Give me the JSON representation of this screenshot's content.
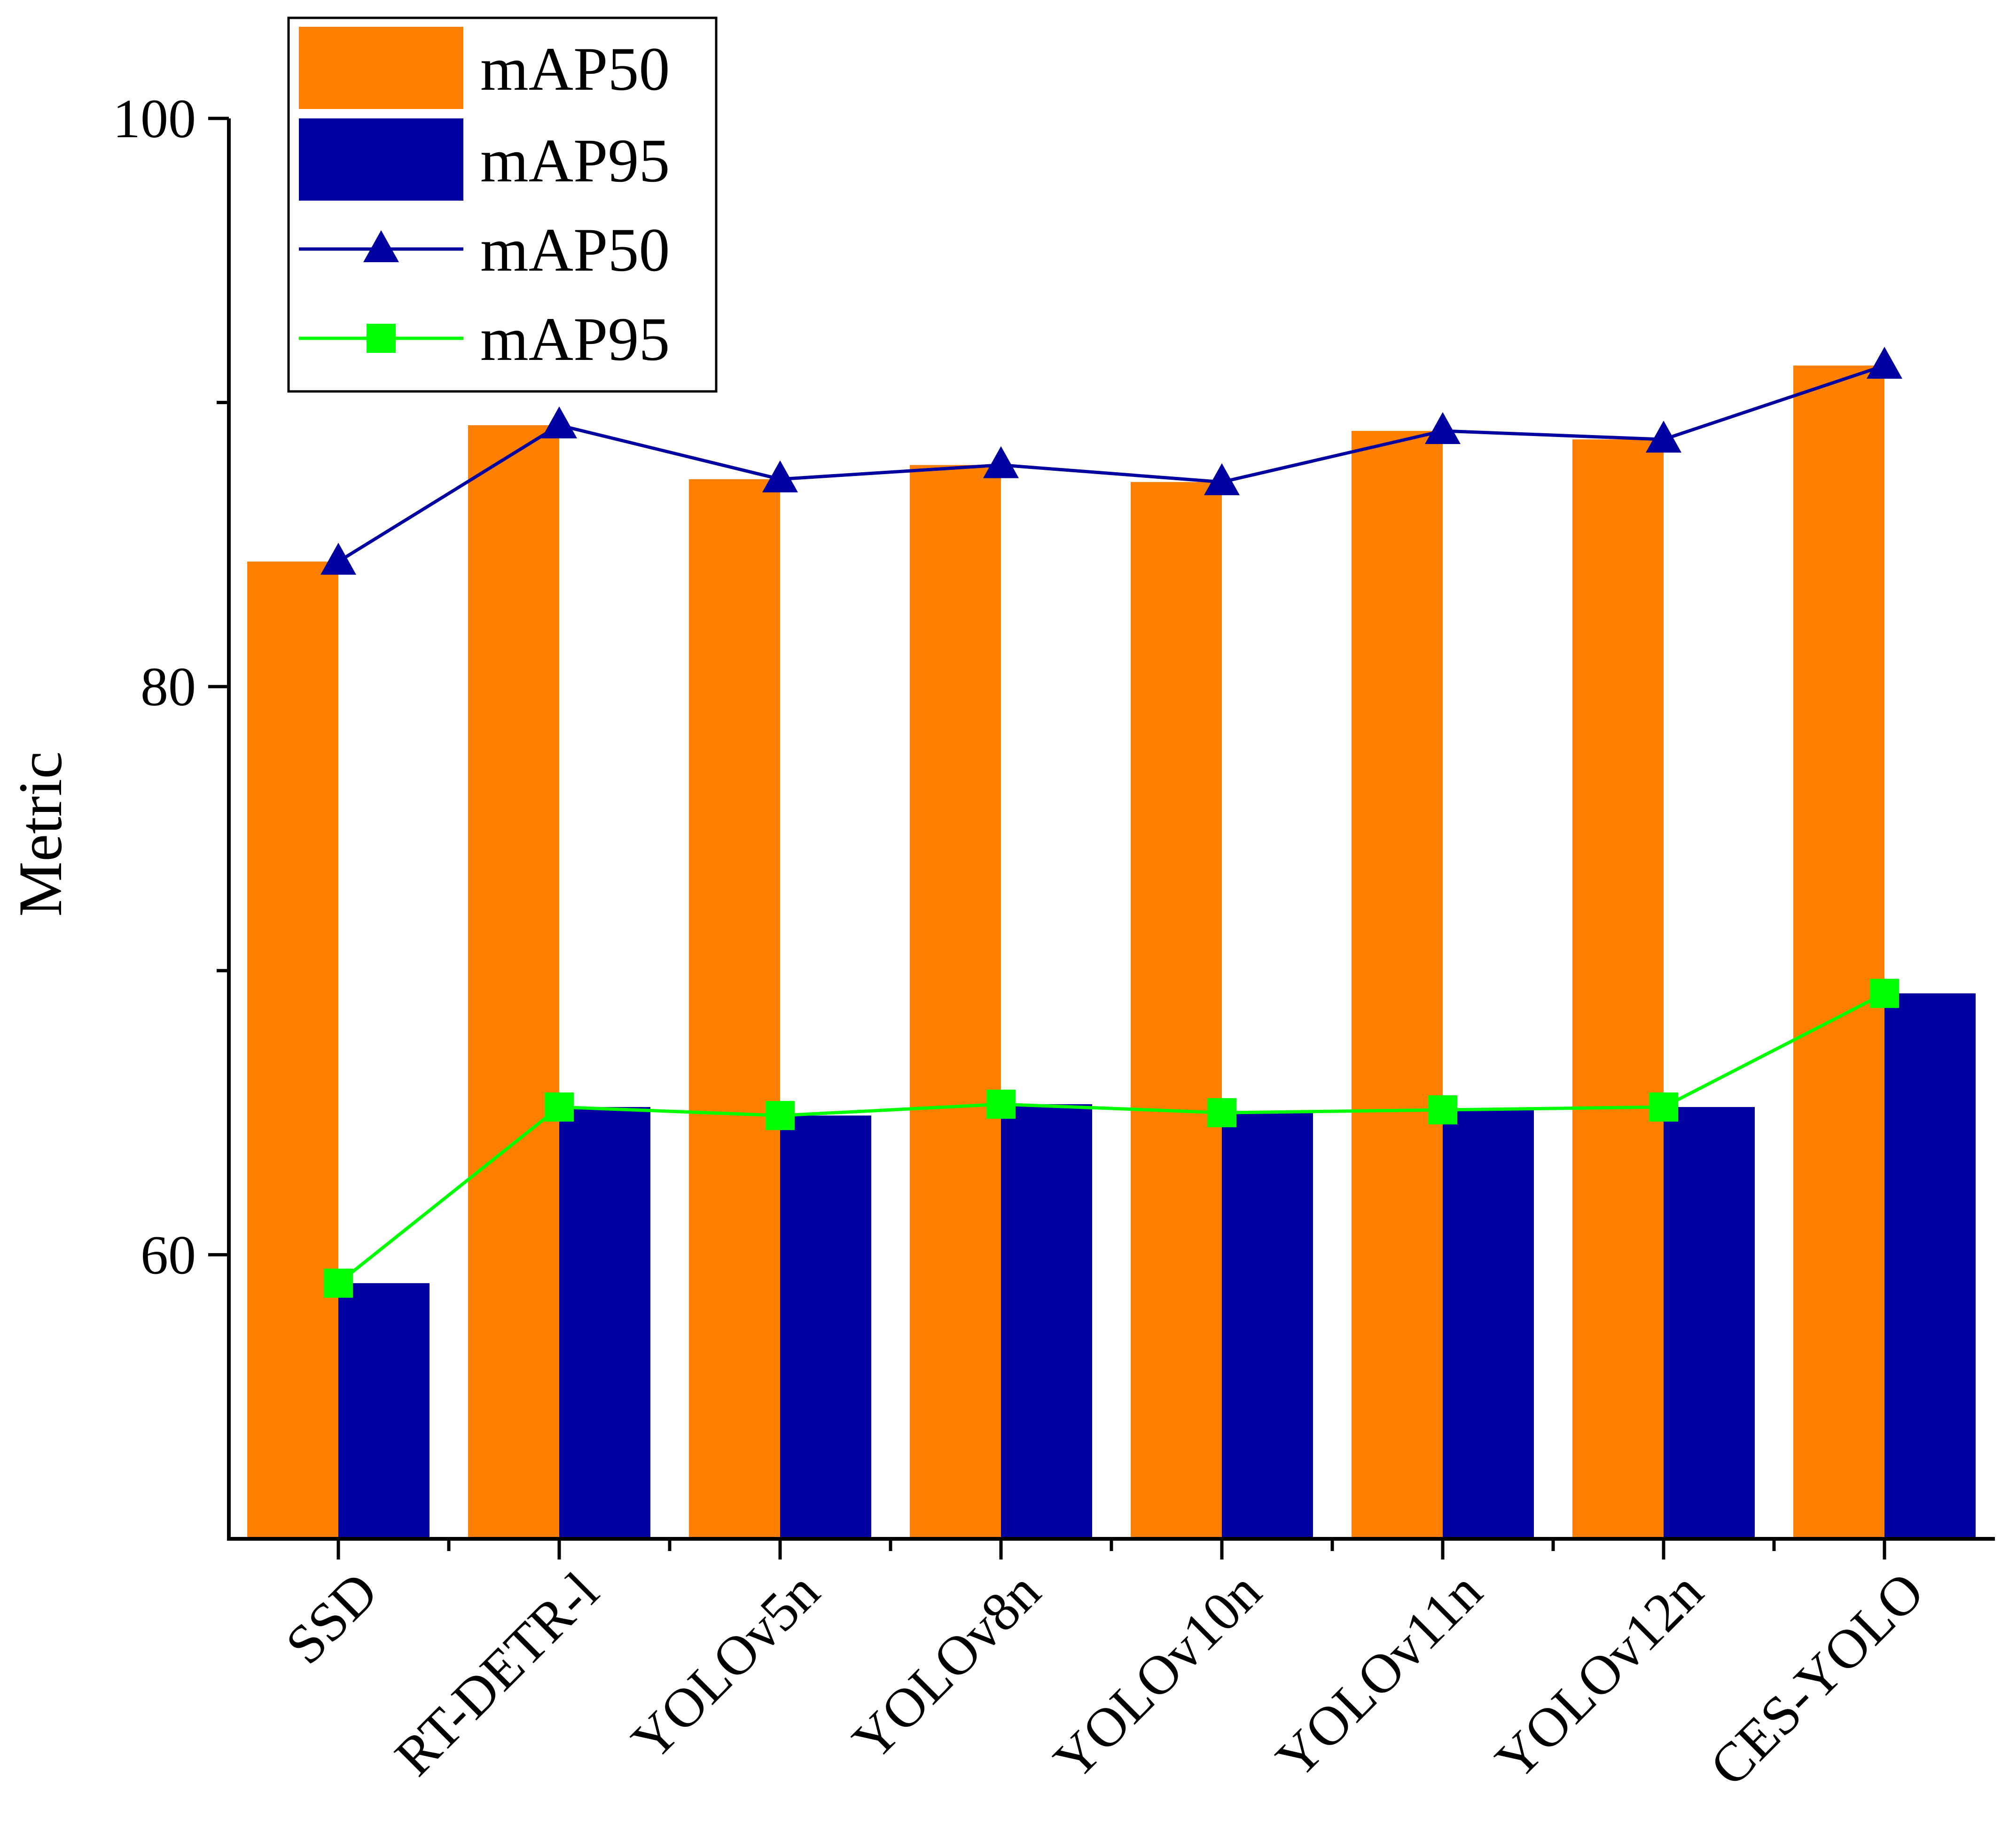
{
  "chart_data": {
    "type": "bar",
    "title": "",
    "xlabel": "",
    "ylabel": "Metric",
    "ylim": [
      50,
      100
    ],
    "yticks": [
      60,
      80,
      100
    ],
    "grid": false,
    "legend_position": "top-left",
    "categories": [
      "SSD",
      "RT-DETR-l",
      "YOLOv5n",
      "YOLOv8n",
      "YOLOv10n",
      "YOLOv11n",
      "YOLOv12n",
      "CES-YOLO"
    ],
    "series": [
      {
        "name": "mAP50",
        "kind": "bar",
        "color": "#FF7F00",
        "values": [
          84.4,
          89.2,
          87.3,
          87.8,
          87.2,
          89.0,
          88.7,
          91.3
        ]
      },
      {
        "name": "mAP95",
        "kind": "bar",
        "color": "#0000A0",
        "values": [
          59.0,
          65.2,
          64.9,
          65.3,
          65.0,
          65.1,
          65.2,
          69.2
        ]
      },
      {
        "name": "mAP50",
        "kind": "line",
        "marker": "triangle",
        "color": "#0000A0",
        "values": [
          84.4,
          89.2,
          87.3,
          87.8,
          87.2,
          89.0,
          88.7,
          91.3
        ]
      },
      {
        "name": "mAP95",
        "kind": "line",
        "marker": "square",
        "color": "#00FF00",
        "values": [
          59.0,
          65.2,
          64.9,
          65.3,
          65.0,
          65.1,
          65.2,
          69.2
        ]
      }
    ]
  }
}
